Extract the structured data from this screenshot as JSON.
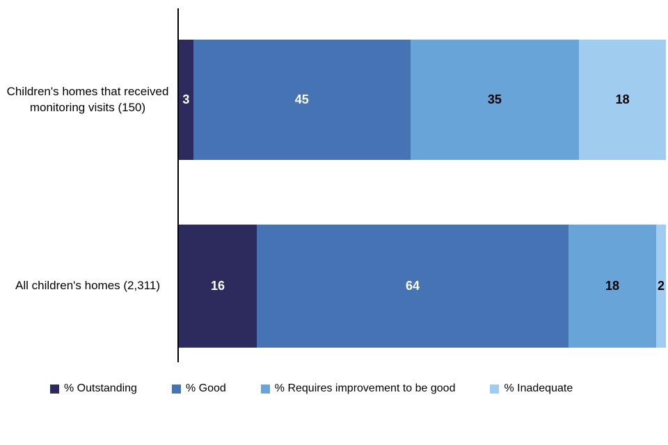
{
  "chart_data": {
    "type": "bar",
    "orientation": "horizontal",
    "stacked": true,
    "title": "",
    "xlabel": "",
    "ylabel": "",
    "xlim": [
      0,
      100
    ],
    "grid": false,
    "legend_position": "bottom",
    "background_color": "#FFFFFF",
    "axis_color": "#000000",
    "categories": [
      "Children's homes that received monitoring visits (150)",
      "All children's homes (2,311)"
    ],
    "series": [
      {
        "name": "% Outstanding",
        "color": "#2D2B5E",
        "label_color": "#FFFFFF",
        "values": [
          3,
          16
        ]
      },
      {
        "name": "% Good",
        "color": "#4573B4",
        "label_color": "#FFFFFF",
        "values": [
          45,
          64
        ]
      },
      {
        "name": "% Requires improvement to be good",
        "color": "#69A4D9",
        "label_color": "#000000",
        "values": [
          35,
          18
        ]
      },
      {
        "name": "% Inadequate",
        "color": "#9FCCEF",
        "label_color": "#000000",
        "values": [
          18,
          2
        ]
      }
    ],
    "value_labels_shown": true
  }
}
